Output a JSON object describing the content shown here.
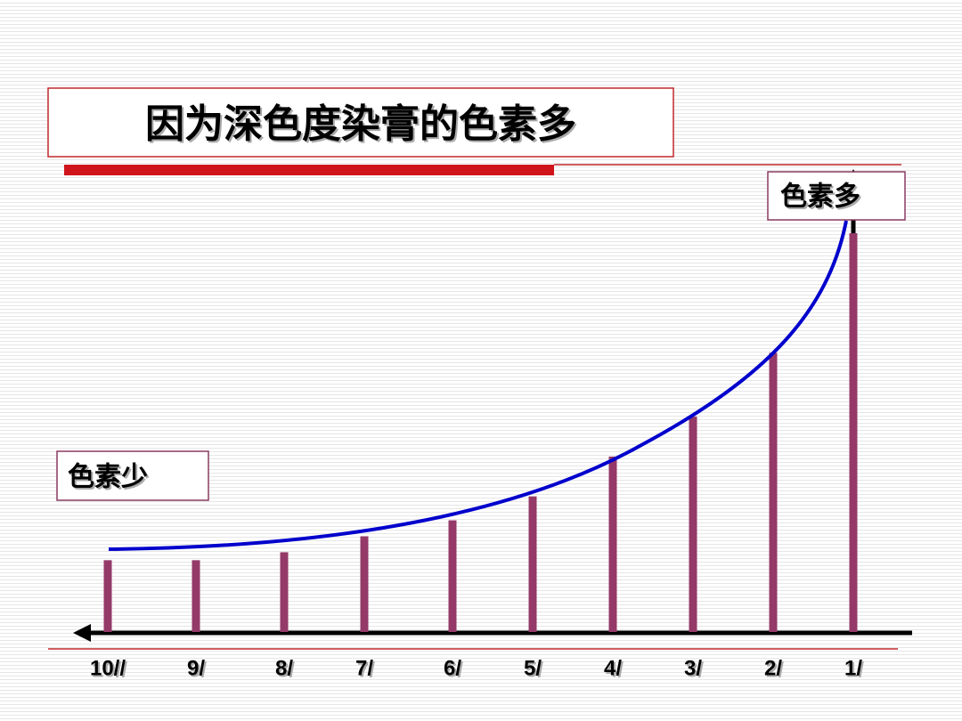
{
  "chart_data": {
    "type": "bar",
    "title": "因为深色度染膏的色素多",
    "annotations": [
      "色素多",
      "色素少"
    ],
    "categories": [
      "10//",
      "9/",
      "8/",
      "7/",
      "6/",
      "5/",
      "4/",
      "3/",
      "2/",
      "1/"
    ],
    "values": [
      18,
      18,
      20,
      24,
      28,
      34,
      44,
      54,
      70,
      100
    ],
    "color": "#943968",
    "ylim": [
      0,
      100
    ]
  }
}
